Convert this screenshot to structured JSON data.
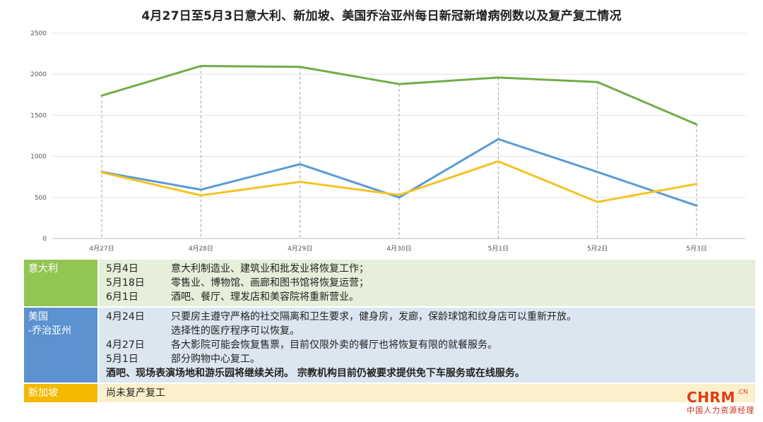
{
  "title": "4月27日至5月3日意大利、新加坡、美国乔治亚州每日新冠新增病例数以及复产复工情况",
  "chart_data": {
    "type": "line",
    "categories": [
      "4月27日",
      "4月28日",
      "4月29日",
      "4月30日",
      "5月1日",
      "5月2日",
      "5月3日"
    ],
    "ylim": [
      0,
      2500
    ],
    "yticks": [
      0,
      500,
      1000,
      1500,
      2000,
      2500
    ],
    "grid": true,
    "series": [
      {
        "color": "#70ad47",
        "values": [
          1740,
          2100,
          2090,
          1880,
          1960,
          1905,
          1390
        ]
      },
      {
        "color": "#5b9bd5",
        "values": [
          810,
          595,
          905,
          500,
          1210,
          810,
          400
        ]
      },
      {
        "color": "#f5c323",
        "values": [
          805,
          525,
          690,
          530,
          940,
          445,
          665
        ]
      }
    ]
  },
  "table": {
    "italy": {
      "label": "意大利",
      "lines": [
        {
          "date": "5月4日",
          "text": "意大利制造业、建筑业和批发业将恢复工作；"
        },
        {
          "date": "5月18日",
          "text": "零售业、博物馆、画廊和图书馆将恢复运营；"
        },
        {
          "date": "6月1日",
          "text": "酒吧、餐厅、理发店和美容院将重新营业。"
        }
      ]
    },
    "us": {
      "label_1": "美国",
      "label_2": "-乔治亚州",
      "line1_date": "4月24日",
      "line1_text": "只要房主遵守严格的社交隔离和卫生要求，健身房，发廊，保龄球馆和纹身店可以重新开放。",
      "line2_text": "选择性的医疗程序可以恢复。",
      "line3_date": "4月27日",
      "line3_text": "各大影院可能会恢复售票，目前仅限外卖的餐厅也将恢复有限的就餐服务。",
      "line4_date": "5月1日",
      "line4_text": "部分购物中心复工。",
      "line5_text": "酒吧、现场表演场地和游乐园将继续关闭。 宗教机构目前仍被要求提供免下车服务或在线服务。"
    },
    "singapore": {
      "label": "新加坡",
      "text": "尚未复产复工"
    }
  },
  "logo": {
    "main": "CHRM",
    "suffix": ".CN",
    "sub": "中国人力资源经理"
  }
}
